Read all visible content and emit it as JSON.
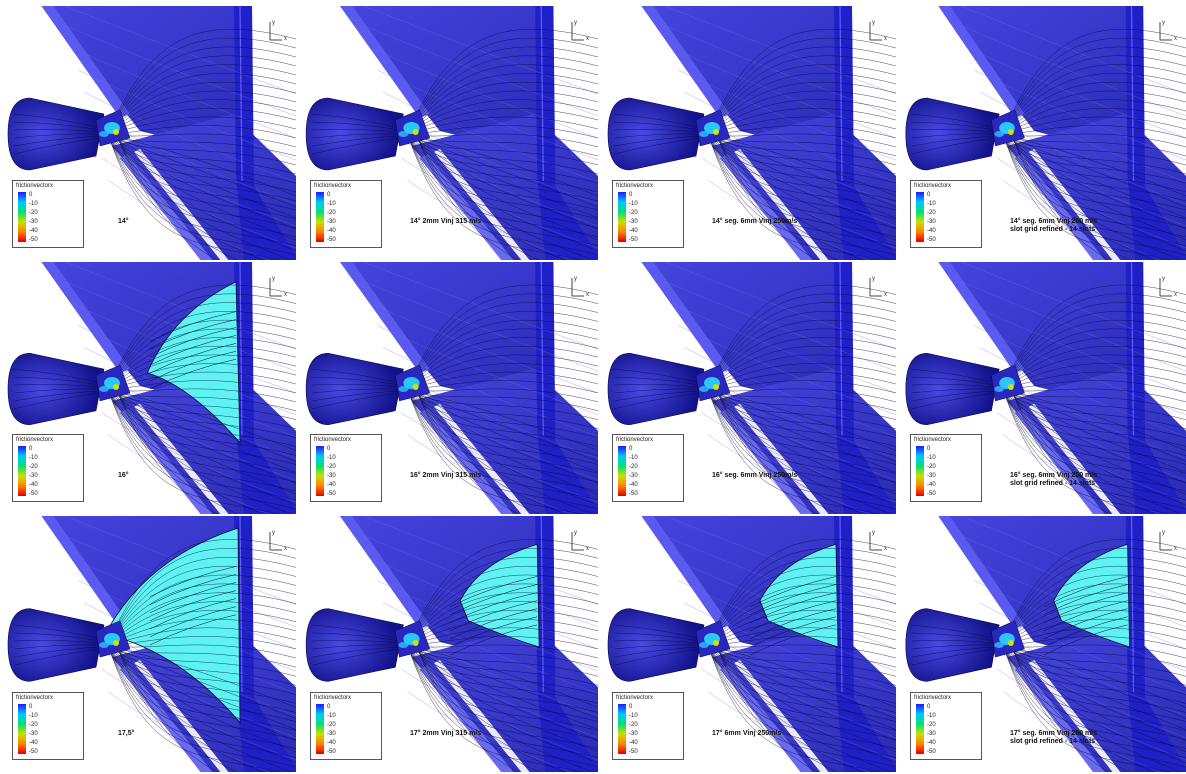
{
  "legend": {
    "title": "frictionvectorx",
    "ticks": [
      "0",
      "-10",
      "-20",
      "-30",
      "-40",
      "-50"
    ],
    "colors": [
      "#1a1aff",
      "#00c8ff",
      "#00e070",
      "#c8e000",
      "#ff8000",
      "#e00000"
    ]
  },
  "axis": {
    "y_label": "y",
    "x_label": "x"
  },
  "colors": {
    "surface": "#3c3cd6",
    "surface_dark": "#1818a0",
    "separation": "#5ef2f2",
    "streamline": "#0a0a30"
  },
  "panels": [
    {
      "caption": [
        "14°"
      ],
      "separation": 0
    },
    {
      "caption": [
        "14° 2mm Vinj 315 m/s"
      ],
      "separation": 0
    },
    {
      "caption": [
        "14° seg. 6mm Vinj 250m/s"
      ],
      "separation": 0
    },
    {
      "caption": [
        "14° seg. 6mm Vinj 250 m/s",
        "slot grid refined - 14 slots"
      ],
      "separation": 0
    },
    {
      "caption": [
        "16°"
      ],
      "separation": 2
    },
    {
      "caption": [
        "16° 2mm Vinj 315 m/s"
      ],
      "separation": 0
    },
    {
      "caption": [
        "16° seg. 6mm Vinj 250m/s"
      ],
      "separation": 0
    },
    {
      "caption": [
        "16° seg. 6mm Vinj 250 m/s",
        "slot grid refined - 14 slots"
      ],
      "separation": 0
    },
    {
      "caption": [
        "17,5°"
      ],
      "separation": 3
    },
    {
      "caption": [
        "17° 2mm Vinj 315 m/s"
      ],
      "separation": 1
    },
    {
      "caption": [
        "17° 6mm Vinj 250m/s"
      ],
      "separation": 1
    },
    {
      "caption": [
        "17° seg. 6mm Vinj 250 m/s",
        "slot grid refined - 14 slots"
      ],
      "separation": 1
    }
  ]
}
